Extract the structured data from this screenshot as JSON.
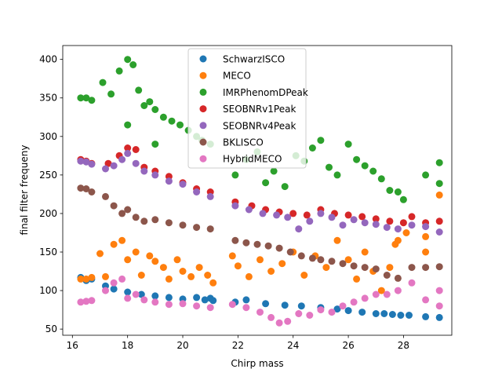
{
  "chart_data": {
    "type": "scatter",
    "title": "",
    "xlabel": "Chirp mass",
    "ylabel": "final filter frequeny",
    "xlim": [
      15.65,
      29.75
    ],
    "ylim": [
      42,
      418
    ],
    "xticks": [
      16,
      18,
      20,
      22,
      24,
      26,
      28
    ],
    "yticks": [
      50,
      100,
      150,
      200,
      250,
      300,
      350,
      400
    ],
    "grid": false,
    "legend_position": "top-center",
    "series": [
      {
        "name": "SchwarzISCO",
        "color": "#1f77b4",
        "points": [
          [
            16.3,
            117
          ],
          [
            16.5,
            113
          ],
          [
            16.7,
            115
          ],
          [
            17.2,
            106
          ],
          [
            17.5,
            102
          ],
          [
            18.0,
            98
          ],
          [
            18.5,
            95
          ],
          [
            19.0,
            93
          ],
          [
            19.5,
            91
          ],
          [
            20.0,
            89
          ],
          [
            20.5,
            91
          ],
          [
            20.8,
            88
          ],
          [
            21.0,
            90
          ],
          [
            21.1,
            87
          ],
          [
            21.9,
            85
          ],
          [
            22.3,
            88
          ],
          [
            23.0,
            83
          ],
          [
            23.7,
            81
          ],
          [
            24.3,
            80
          ],
          [
            25.0,
            78
          ],
          [
            25.6,
            76
          ],
          [
            26.0,
            74
          ],
          [
            26.5,
            72
          ],
          [
            27.0,
            70
          ],
          [
            27.3,
            70
          ],
          [
            27.6,
            69
          ],
          [
            27.9,
            68
          ],
          [
            28.2,
            68
          ],
          [
            28.8,
            66
          ],
          [
            29.3,
            65
          ]
        ]
      },
      {
        "name": "MECO",
        "color": "#ff7f0e",
        "points": [
          [
            16.3,
            115
          ],
          [
            16.5,
            115
          ],
          [
            16.7,
            117
          ],
          [
            17.0,
            148
          ],
          [
            17.2,
            118
          ],
          [
            17.5,
            160
          ],
          [
            17.8,
            165
          ],
          [
            18.0,
            140
          ],
          [
            18.3,
            150
          ],
          [
            18.5,
            120
          ],
          [
            18.8,
            145
          ],
          [
            19.0,
            138
          ],
          [
            19.3,
            130
          ],
          [
            19.5,
            115
          ],
          [
            19.8,
            140
          ],
          [
            20.0,
            125
          ],
          [
            20.3,
            118
          ],
          [
            20.6,
            130
          ],
          [
            20.9,
            120
          ],
          [
            21.1,
            110
          ],
          [
            21.8,
            145
          ],
          [
            22.0,
            132
          ],
          [
            22.4,
            118
          ],
          [
            22.8,
            140
          ],
          [
            23.2,
            125
          ],
          [
            23.6,
            135
          ],
          [
            24.0,
            150
          ],
          [
            24.4,
            120
          ],
          [
            24.8,
            145
          ],
          [
            25.2,
            130
          ],
          [
            25.6,
            165
          ],
          [
            26.0,
            140
          ],
          [
            26.3,
            115
          ],
          [
            26.6,
            150
          ],
          [
            26.9,
            125
          ],
          [
            27.2,
            100
          ],
          [
            27.5,
            130
          ],
          [
            27.8,
            165
          ],
          [
            28.1,
            175
          ],
          [
            28.8,
            170
          ],
          [
            28.8,
            150
          ],
          [
            29.3,
            224
          ],
          [
            27.7,
            160
          ]
        ]
      },
      {
        "name": "IMRPhenomDPeak",
        "color": "#2ca02c",
        "points": [
          [
            16.3,
            350
          ],
          [
            16.5,
            350
          ],
          [
            16.7,
            347
          ],
          [
            17.1,
            370
          ],
          [
            17.4,
            355
          ],
          [
            17.7,
            385
          ],
          [
            18.0,
            400
          ],
          [
            18.2,
            393
          ],
          [
            18.4,
            360
          ],
          [
            18.6,
            340
          ],
          [
            18.8,
            345
          ],
          [
            19.0,
            335
          ],
          [
            19.3,
            325
          ],
          [
            19.6,
            320
          ],
          [
            19.9,
            315
          ],
          [
            20.2,
            308
          ],
          [
            20.5,
            300
          ],
          [
            20.7,
            295
          ],
          [
            21.0,
            290
          ],
          [
            19.0,
            290
          ],
          [
            18.0,
            315
          ],
          [
            21.9,
            250
          ],
          [
            22.3,
            270
          ],
          [
            22.7,
            280
          ],
          [
            23.0,
            240
          ],
          [
            23.3,
            255
          ],
          [
            23.7,
            235
          ],
          [
            24.1,
            275
          ],
          [
            24.4,
            268
          ],
          [
            24.7,
            285
          ],
          [
            25.0,
            295
          ],
          [
            25.3,
            260
          ],
          [
            25.6,
            250
          ],
          [
            26.0,
            290
          ],
          [
            26.3,
            270
          ],
          [
            26.6,
            262
          ],
          [
            26.9,
            255
          ],
          [
            27.2,
            245
          ],
          [
            27.5,
            230
          ],
          [
            27.8,
            228
          ],
          [
            28.0,
            218
          ],
          [
            28.8,
            250
          ],
          [
            29.3,
            266
          ],
          [
            29.3,
            239
          ]
        ]
      },
      {
        "name": "SEOBNRv1Peak",
        "color": "#d62728",
        "points": [
          [
            16.3,
            270
          ],
          [
            16.5,
            268
          ],
          [
            16.7,
            265
          ],
          [
            17.3,
            265
          ],
          [
            17.7,
            275
          ],
          [
            18.0,
            285
          ],
          [
            18.3,
            283
          ],
          [
            18.6,
            260
          ],
          [
            19.0,
            255
          ],
          [
            19.5,
            248
          ],
          [
            20.0,
            240
          ],
          [
            20.5,
            232
          ],
          [
            21.0,
            228
          ],
          [
            21.9,
            215
          ],
          [
            22.5,
            210
          ],
          [
            23.0,
            205
          ],
          [
            23.5,
            202
          ],
          [
            24.0,
            200
          ],
          [
            24.5,
            198
          ],
          [
            25.0,
            205
          ],
          [
            25.5,
            200
          ],
          [
            26.0,
            198
          ],
          [
            26.5,
            196
          ],
          [
            27.0,
            193
          ],
          [
            27.5,
            190
          ],
          [
            28.0,
            188
          ],
          [
            28.3,
            196
          ],
          [
            28.8,
            188
          ],
          [
            29.3,
            190
          ]
        ]
      },
      {
        "name": "SEOBNRv4Peak",
        "color": "#9467bd",
        "points": [
          [
            16.3,
            268
          ],
          [
            16.5,
            267
          ],
          [
            16.7,
            264
          ],
          [
            17.2,
            258
          ],
          [
            17.5,
            262
          ],
          [
            17.8,
            270
          ],
          [
            18.0,
            278
          ],
          [
            18.3,
            265
          ],
          [
            18.6,
            255
          ],
          [
            19.0,
            250
          ],
          [
            19.5,
            242
          ],
          [
            20.0,
            238
          ],
          [
            20.5,
            228
          ],
          [
            21.0,
            222
          ],
          [
            21.9,
            210
          ],
          [
            22.4,
            205
          ],
          [
            22.9,
            200
          ],
          [
            23.4,
            198
          ],
          [
            23.8,
            195
          ],
          [
            24.2,
            180
          ],
          [
            24.6,
            190
          ],
          [
            25.0,
            200
          ],
          [
            25.4,
            195
          ],
          [
            25.8,
            185
          ],
          [
            26.2,
            192
          ],
          [
            26.6,
            188
          ],
          [
            27.0,
            186
          ],
          [
            27.4,
            182
          ],
          [
            27.8,
            180
          ],
          [
            28.3,
            185
          ],
          [
            28.8,
            183
          ],
          [
            29.3,
            176
          ]
        ]
      },
      {
        "name": "BKLISCO",
        "color": "#8c564b",
        "points": [
          [
            16.3,
            233
          ],
          [
            16.5,
            232
          ],
          [
            16.7,
            228
          ],
          [
            17.2,
            222
          ],
          [
            17.5,
            210
          ],
          [
            17.8,
            200
          ],
          [
            18.0,
            205
          ],
          [
            18.3,
            195
          ],
          [
            18.6,
            190
          ],
          [
            19.0,
            192
          ],
          [
            19.5,
            188
          ],
          [
            20.0,
            185
          ],
          [
            20.5,
            182
          ],
          [
            21.0,
            180
          ],
          [
            21.9,
            165
          ],
          [
            22.3,
            162
          ],
          [
            22.7,
            160
          ],
          [
            23.1,
            158
          ],
          [
            23.5,
            155
          ],
          [
            23.9,
            150
          ],
          [
            24.3,
            145
          ],
          [
            24.7,
            142
          ],
          [
            25.0,
            140
          ],
          [
            25.4,
            138
          ],
          [
            25.8,
            135
          ],
          [
            26.2,
            132
          ],
          [
            26.6,
            130
          ],
          [
            27.0,
            128
          ],
          [
            27.4,
            120
          ],
          [
            27.8,
            116
          ],
          [
            28.3,
            130
          ],
          [
            28.8,
            130
          ],
          [
            29.3,
            131
          ]
        ]
      },
      {
        "name": "HybridMECO",
        "color": "#e377c2",
        "points": [
          [
            16.3,
            85
          ],
          [
            16.5,
            86
          ],
          [
            16.7,
            87
          ],
          [
            17.2,
            100
          ],
          [
            17.5,
            110
          ],
          [
            17.8,
            115
          ],
          [
            18.0,
            90
          ],
          [
            18.3,
            95
          ],
          [
            18.6,
            88
          ],
          [
            19.0,
            85
          ],
          [
            19.5,
            82
          ],
          [
            20.0,
            83
          ],
          [
            20.5,
            80
          ],
          [
            21.0,
            78
          ],
          [
            21.8,
            82
          ],
          [
            22.3,
            78
          ],
          [
            22.8,
            72
          ],
          [
            23.2,
            65
          ],
          [
            23.5,
            58
          ],
          [
            23.8,
            60
          ],
          [
            24.2,
            70
          ],
          [
            24.6,
            68
          ],
          [
            25.0,
            75
          ],
          [
            25.4,
            72
          ],
          [
            25.8,
            80
          ],
          [
            26.2,
            85
          ],
          [
            26.6,
            90
          ],
          [
            27.0,
            95
          ],
          [
            27.4,
            95
          ],
          [
            27.8,
            100
          ],
          [
            28.3,
            110
          ],
          [
            28.8,
            88
          ],
          [
            29.3,
            100
          ],
          [
            29.3,
            80
          ]
        ]
      }
    ]
  }
}
